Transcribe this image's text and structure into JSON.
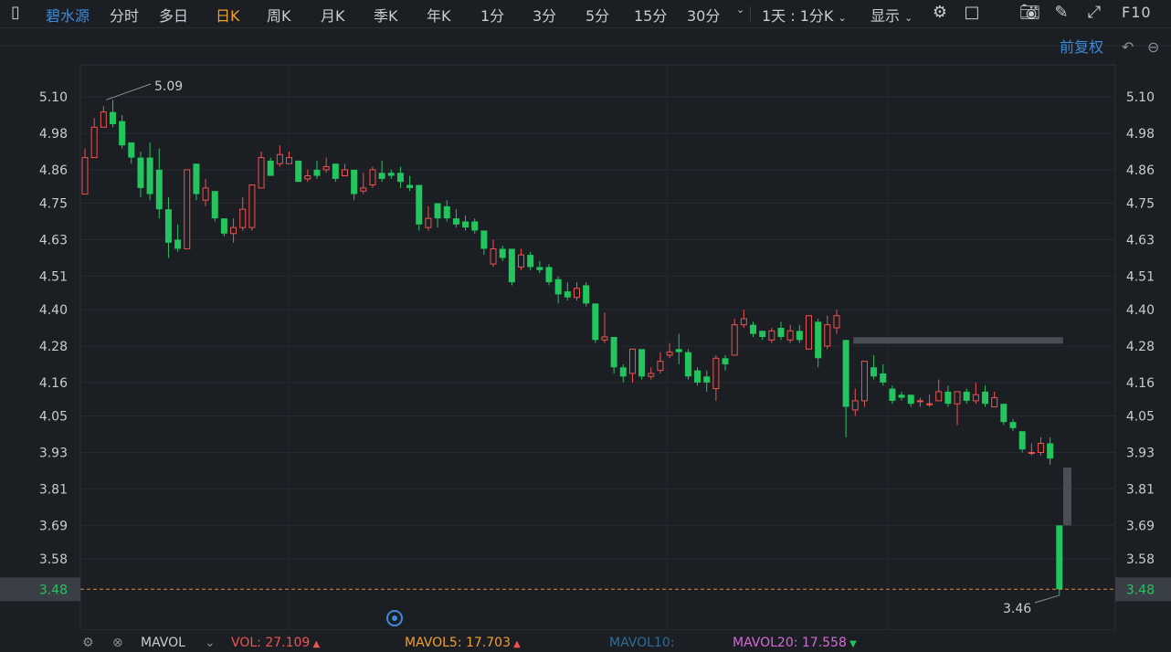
{
  "toolbar": {
    "stock_name": "碧水源",
    "periods": [
      "分时",
      "多日",
      "日K",
      "周K",
      "月K",
      "季K",
      "年K",
      "1分",
      "3分",
      "5分",
      "15分",
      "30分"
    ],
    "active_period": "日K",
    "range_select": "1天 : 1分K",
    "display_label": "显示",
    "f10_label": "F10"
  },
  "chart_header": {
    "adjust_label": "前复权"
  },
  "price_axis": {
    "ticks": [
      "5.10",
      "4.98",
      "4.86",
      "4.75",
      "4.63",
      "4.51",
      "4.40",
      "4.28",
      "4.16",
      "4.05",
      "3.93",
      "3.81",
      "3.69",
      "3.58"
    ],
    "current_price_label": "3.48",
    "high_label": "5.09",
    "low_label": "3.46"
  },
  "colors": {
    "up": "#ef5350",
    "down": "#22c55e",
    "accent": "#f0a030",
    "link": "#3b8bd9"
  },
  "chart_data": {
    "type": "candlestick",
    "ylim": [
      3.43,
      5.13
    ],
    "y_ticks": [
      5.1,
      4.98,
      4.86,
      4.75,
      4.63,
      4.51,
      4.4,
      4.28,
      4.16,
      4.05,
      3.93,
      3.81,
      3.69,
      3.58
    ],
    "last_price": 3.48,
    "high": 5.09,
    "low": 3.46,
    "candles": [
      [
        4.78,
        4.9,
        4.93,
        4.78
      ],
      [
        4.9,
        5.0,
        5.03,
        4.9
      ],
      [
        5.0,
        5.05,
        5.07,
        5.0
      ],
      [
        5.05,
        5.01,
        5.09,
        5.0
      ],
      [
        5.02,
        4.94,
        5.04,
        4.93
      ],
      [
        4.95,
        4.9,
        4.95,
        4.88
      ],
      [
        4.9,
        4.8,
        4.92,
        4.77
      ],
      [
        4.9,
        4.78,
        4.95,
        4.76
      ],
      [
        4.86,
        4.73,
        4.93,
        4.7
      ],
      [
        4.73,
        4.62,
        4.77,
        4.57
      ],
      [
        4.63,
        4.6,
        4.68,
        4.59
      ],
      [
        4.6,
        4.86,
        4.86,
        4.6
      ],
      [
        4.88,
        4.78,
        4.88,
        4.76
      ],
      [
        4.76,
        4.8,
        4.83,
        4.74
      ],
      [
        4.79,
        4.7,
        4.79,
        4.69
      ],
      [
        4.7,
        4.65,
        4.7,
        4.64
      ],
      [
        4.65,
        4.67,
        4.7,
        4.62
      ],
      [
        4.67,
        4.73,
        4.77,
        4.66
      ],
      [
        4.67,
        4.81,
        4.81,
        4.66
      ],
      [
        4.8,
        4.9,
        4.92,
        4.8
      ],
      [
        4.89,
        4.84,
        4.9,
        4.84
      ],
      [
        4.88,
        4.91,
        4.94,
        4.87
      ],
      [
        4.88,
        4.9,
        4.92,
        4.88
      ],
      [
        4.89,
        4.82,
        4.89,
        4.82
      ],
      [
        4.83,
        4.84,
        4.86,
        4.82
      ],
      [
        4.86,
        4.84,
        4.89,
        4.83
      ],
      [
        4.86,
        4.87,
        4.9,
        4.85
      ],
      [
        4.88,
        4.83,
        4.88,
        4.82
      ],
      [
        4.84,
        4.86,
        4.88,
        4.84
      ],
      [
        4.86,
        4.78,
        4.86,
        4.76
      ],
      [
        4.79,
        4.8,
        4.85,
        4.78
      ],
      [
        4.81,
        4.86,
        4.87,
        4.8
      ],
      [
        4.85,
        4.83,
        4.89,
        4.82
      ],
      [
        4.85,
        4.84,
        4.86,
        4.83
      ],
      [
        4.85,
        4.82,
        4.87,
        4.8
      ],
      [
        4.81,
        4.8,
        4.84,
        4.79
      ],
      [
        4.81,
        4.68,
        4.81,
        4.66
      ],
      [
        4.67,
        4.7,
        4.74,
        4.66
      ],
      [
        4.75,
        4.7,
        4.75,
        4.67
      ],
      [
        4.74,
        4.7,
        4.76,
        4.69
      ],
      [
        4.7,
        4.68,
        4.73,
        4.67
      ],
      [
        4.69,
        4.67,
        4.71,
        4.66
      ],
      [
        4.69,
        4.66,
        4.7,
        4.65
      ],
      [
        4.66,
        4.6,
        4.66,
        4.58
      ],
      [
        4.55,
        4.6,
        4.63,
        4.54
      ],
      [
        4.6,
        4.57,
        4.61,
        4.56
      ],
      [
        4.6,
        4.49,
        4.6,
        4.48
      ],
      [
        4.54,
        4.58,
        4.6,
        4.53
      ],
      [
        4.58,
        4.54,
        4.59,
        4.53
      ],
      [
        4.54,
        4.53,
        4.56,
        4.52
      ],
      [
        4.54,
        4.49,
        4.55,
        4.48
      ],
      [
        4.5,
        4.45,
        4.51,
        4.42
      ],
      [
        4.46,
        4.44,
        4.49,
        4.43
      ],
      [
        4.44,
        4.47,
        4.49,
        4.43
      ],
      [
        4.48,
        4.42,
        4.49,
        4.41
      ],
      [
        4.42,
        4.3,
        4.42,
        4.29
      ],
      [
        4.3,
        4.31,
        4.39,
        4.29
      ],
      [
        4.31,
        4.21,
        4.31,
        4.19
      ],
      [
        4.21,
        4.18,
        4.22,
        4.16
      ],
      [
        4.19,
        4.27,
        4.27,
        4.16
      ],
      [
        4.27,
        4.18,
        4.26,
        4.17
      ],
      [
        4.18,
        4.19,
        4.21,
        4.17
      ],
      [
        4.2,
        4.23,
        4.26,
        4.19
      ],
      [
        4.25,
        4.26,
        4.29,
        4.24
      ],
      [
        4.27,
        4.26,
        4.32,
        4.22
      ],
      [
        4.26,
        4.18,
        4.27,
        4.17
      ],
      [
        4.2,
        4.16,
        4.21,
        4.15
      ],
      [
        4.18,
        4.16,
        4.2,
        4.13
      ],
      [
        4.14,
        4.24,
        4.25,
        4.1
      ],
      [
        4.24,
        4.22,
        4.25,
        4.2
      ],
      [
        4.25,
        4.35,
        4.37,
        4.25
      ],
      [
        4.35,
        4.37,
        4.4,
        4.34
      ],
      [
        4.35,
        4.32,
        4.36,
        4.31
      ],
      [
        4.33,
        4.31,
        4.33,
        4.3
      ],
      [
        4.3,
        4.33,
        4.34,
        4.29
      ],
      [
        4.34,
        4.31,
        4.36,
        4.3
      ],
      [
        4.3,
        4.33,
        4.35,
        4.29
      ],
      [
        4.33,
        4.3,
        4.35,
        4.29
      ],
      [
        4.27,
        4.38,
        4.38,
        4.27
      ],
      [
        4.36,
        4.24,
        4.37,
        4.21
      ],
      [
        4.28,
        4.35,
        4.38,
        4.27
      ],
      [
        4.34,
        4.38,
        4.4,
        4.32
      ],
      [
        4.3,
        4.08,
        4.3,
        3.98
      ],
      [
        4.07,
        4.1,
        4.14,
        4.05
      ],
      [
        4.1,
        4.23,
        4.23,
        4.08
      ],
      [
        4.21,
        4.18,
        4.25,
        4.17
      ],
      [
        4.19,
        4.16,
        4.22,
        4.15
      ],
      [
        4.14,
        4.1,
        4.15,
        4.09
      ],
      [
        4.12,
        4.11,
        4.13,
        4.1
      ],
      [
        4.12,
        4.09,
        4.12,
        4.08
      ],
      [
        4.1,
        4.1,
        4.11,
        4.08
      ],
      [
        4.09,
        4.09,
        4.12,
        4.08
      ],
      [
        4.1,
        4.13,
        4.17,
        4.1
      ],
      [
        4.13,
        4.09,
        4.15,
        4.08
      ],
      [
        4.09,
        4.13,
        4.13,
        4.02
      ],
      [
        4.13,
        4.1,
        4.14,
        4.09
      ],
      [
        4.1,
        4.12,
        4.16,
        4.09
      ],
      [
        4.13,
        4.09,
        4.15,
        4.08
      ],
      [
        4.08,
        4.11,
        4.13,
        4.08
      ],
      [
        4.09,
        4.03,
        4.09,
        4.02
      ],
      [
        4.03,
        4.01,
        4.04,
        4.0
      ],
      [
        4.0,
        3.94,
        4.0,
        3.93
      ],
      [
        3.93,
        3.93,
        3.96,
        3.92
      ],
      [
        3.93,
        3.96,
        3.98,
        3.92
      ],
      [
        3.96,
        3.91,
        3.98,
        3.89
      ],
      [
        3.69,
        3.48,
        3.69,
        3.46
      ]
    ],
    "gap_bars": [
      {
        "from_index": 83,
        "to_index": 105,
        "price": 4.3
      },
      {
        "from_index": 106,
        "to_index": 106,
        "low": 3.69,
        "high": 3.88
      }
    ]
  },
  "volume_bar": {
    "indicator_name": "MAVOL",
    "items": [
      {
        "label": "VOL: ",
        "value": "27.109",
        "color": "#ef5350",
        "arrow": "up"
      },
      {
        "label": "MAVOL5: ",
        "value": "17.703",
        "color": "#f0a030",
        "arrow": "up"
      },
      {
        "label": "MAVOL10: ",
        "value": "",
        "color": "#2f6d95",
        "arrow": ""
      },
      {
        "label": "MAVOL20: ",
        "value": "17.558",
        "color": "#d66bd6",
        "arrow": "down"
      }
    ]
  }
}
